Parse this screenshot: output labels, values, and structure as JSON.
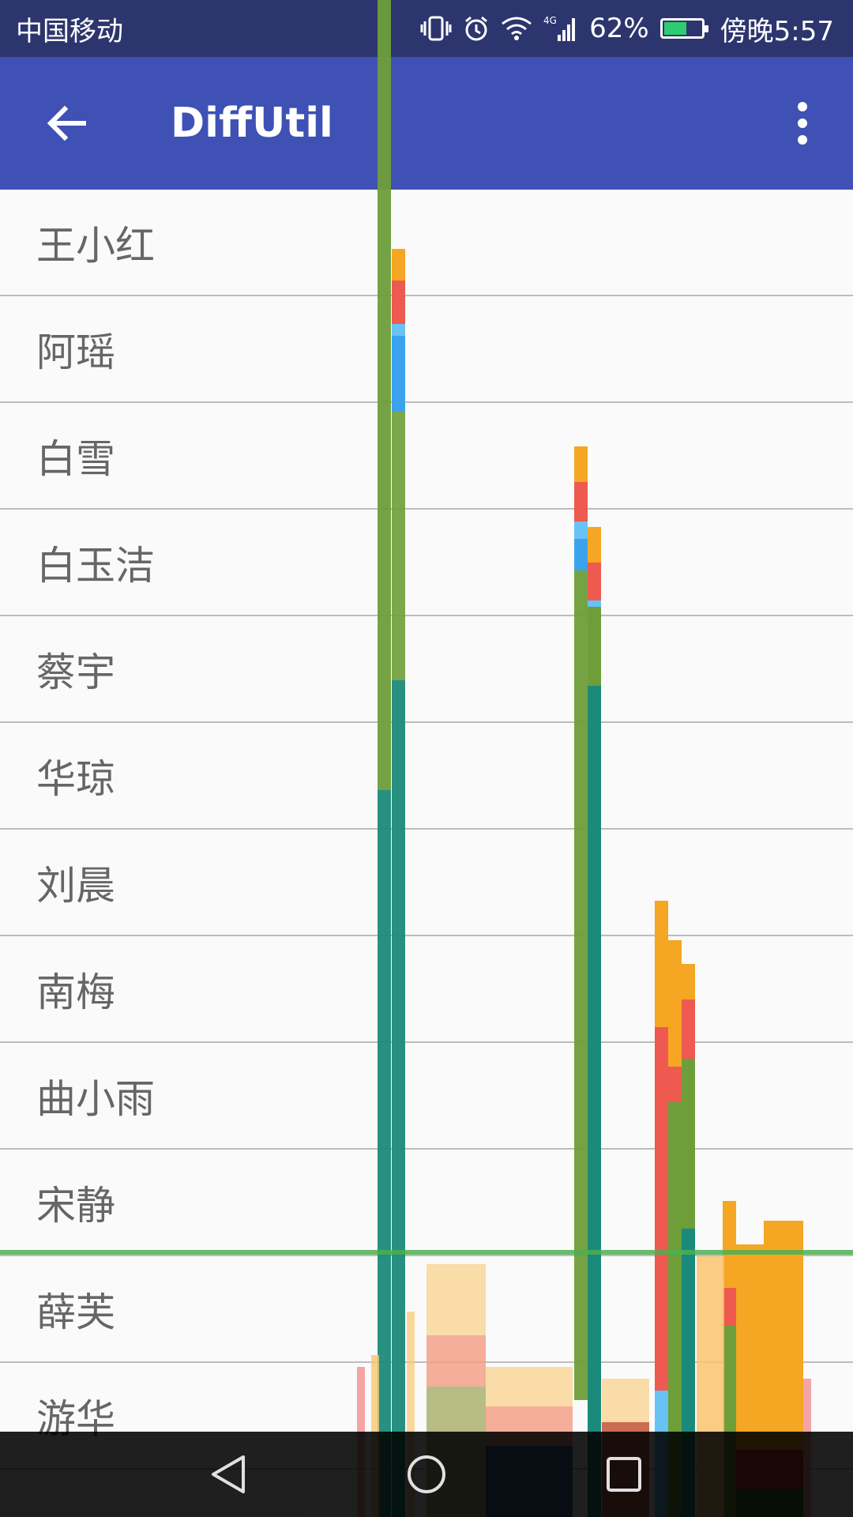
{
  "status_bar": {
    "carrier": "中国移动",
    "network": "4G",
    "battery_percent": "62%",
    "battery_level": 0.62,
    "time": "傍晚5:57",
    "icons": [
      "vibrate-icon",
      "alarm-icon",
      "wifi-icon",
      "signal-icon",
      "battery-icon"
    ]
  },
  "toolbar": {
    "title": "DiffUtil",
    "back_icon": "arrow-back-icon",
    "menu_icon": "more-vert-icon",
    "color": "#3f51b5"
  },
  "list": {
    "items": [
      {
        "label": "王小红"
      },
      {
        "label": "阿瑶"
      },
      {
        "label": "白雪"
      },
      {
        "label": "白玉洁"
      },
      {
        "label": "蔡宇"
      },
      {
        "label": "华琼"
      },
      {
        "label": "刘晨"
      },
      {
        "label": "南梅"
      },
      {
        "label": "曲小雨"
      },
      {
        "label": "宋静"
      },
      {
        "label": "薛芙"
      },
      {
        "label": "游华"
      }
    ]
  },
  "nav_bar": {
    "icons": [
      "back-triangle-icon",
      "home-circle-icon",
      "recents-square-icon"
    ]
  }
}
